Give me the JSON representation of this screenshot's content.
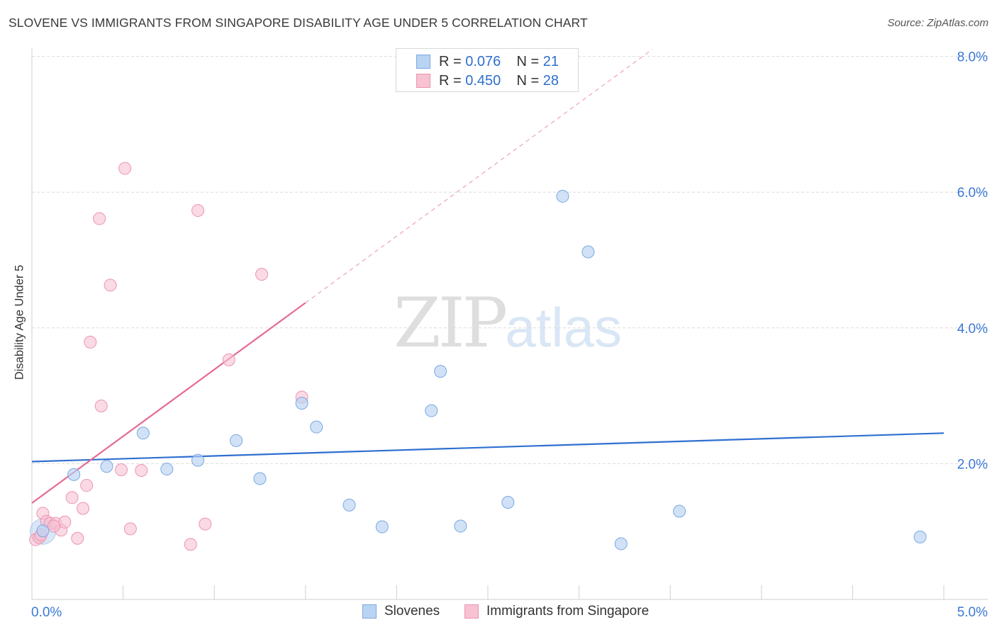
{
  "title": "SLOVENE VS IMMIGRANTS FROM SINGAPORE DISABILITY AGE UNDER 5 CORRELATION CHART",
  "source": "Source: ZipAtlas.com",
  "watermark": {
    "part1": "ZIP",
    "part2": "atlas"
  },
  "legend_top": [
    {
      "r_label": "R =",
      "r_value": "0.076",
      "n_label": "N =",
      "n_value": "21"
    },
    {
      "r_label": "R =",
      "r_value": "0.450",
      "n_label": "N =",
      "n_value": "28"
    }
  ],
  "legend_bottom": [
    "Slovenes",
    "Immigrants from Singapore"
  ],
  "colors": {
    "blue_fill": "#b9d3f2",
    "blue_stroke": "#7aa8e2",
    "blue_line": "#2f6fd0",
    "pink_fill": "#f7c2d2",
    "pink_stroke": "#ec94b2",
    "pink_line": "#e66a93",
    "axis_label": "#3b78d6",
    "grid": "#dcdcdc"
  },
  "chart_data": {
    "type": "scatter",
    "title": "SLOVENE VS IMMIGRANTS FROM SINGAPORE DISABILITY AGE UNDER 5 CORRELATION CHART",
    "xlabel": "",
    "ylabel": "Disability Age Under 5",
    "xlim": [
      0,
      5
    ],
    "ylim": [
      0,
      8
    ],
    "x_tick_labels": [
      {
        "value": 0,
        "label": "0.0%"
      },
      {
        "value": 5,
        "label": "5.0%"
      }
    ],
    "y_tick_labels": [
      {
        "value": 2,
        "label": "2.0%"
      },
      {
        "value": 4,
        "label": "4.0%"
      },
      {
        "value": 6,
        "label": "6.0%"
      },
      {
        "value": 8,
        "label": "8.0%"
      }
    ],
    "grid": true,
    "legend_position": "top-center",
    "series": [
      {
        "name": "Slovenes",
        "color": "#7aa8e2",
        "points": [
          [
            0.06,
            1.01
          ],
          [
            0.23,
            1.84
          ],
          [
            0.41,
            1.96
          ],
          [
            0.61,
            2.45
          ],
          [
            0.74,
            1.92
          ],
          [
            0.91,
            2.05
          ],
          [
            1.12,
            2.34
          ],
          [
            1.25,
            1.78
          ],
          [
            1.48,
            2.89
          ],
          [
            1.56,
            2.54
          ],
          [
            1.74,
            1.39
          ],
          [
            1.92,
            1.07
          ],
          [
            2.19,
            2.78
          ],
          [
            2.24,
            3.36
          ],
          [
            2.35,
            1.08
          ],
          [
            2.61,
            1.43
          ],
          [
            2.91,
            5.94
          ],
          [
            3.05,
            5.12
          ],
          [
            3.23,
            0.82
          ],
          [
            3.55,
            1.3
          ],
          [
            4.87,
            0.92
          ]
        ],
        "trend": {
          "x": [
            0,
            5
          ],
          "y": [
            2.03,
            2.45
          ]
        }
      },
      {
        "name": "Immigrants from Singapore",
        "color": "#ec94b2",
        "points": [
          [
            0.02,
            0.88
          ],
          [
            0.04,
            0.91
          ],
          [
            0.06,
            1.27
          ],
          [
            0.08,
            1.15
          ],
          [
            0.1,
            1.12
          ],
          [
            0.13,
            1.12
          ],
          [
            0.16,
            1.02
          ],
          [
            0.18,
            1.14
          ],
          [
            0.22,
            1.5
          ],
          [
            0.25,
            0.9
          ],
          [
            0.28,
            1.34
          ],
          [
            0.3,
            1.68
          ],
          [
            0.32,
            3.79
          ],
          [
            0.37,
            5.61
          ],
          [
            0.38,
            2.85
          ],
          [
            0.43,
            4.63
          ],
          [
            0.49,
            1.91
          ],
          [
            0.51,
            6.35
          ],
          [
            0.54,
            1.04
          ],
          [
            0.6,
            1.9
          ],
          [
            0.87,
            0.81
          ],
          [
            0.91,
            5.73
          ],
          [
            0.95,
            1.11
          ],
          [
            1.08,
            3.53
          ],
          [
            1.26,
            4.79
          ],
          [
            1.48,
            2.98
          ],
          [
            0.12,
            1.08
          ],
          [
            0.05,
            0.95
          ]
        ],
        "trend": {
          "x": [
            0,
            1.5
          ],
          "y": [
            1.42,
            4.37
          ]
        },
        "trend_extension": {
          "x": [
            1.5,
            3.4
          ],
          "y": [
            4.37,
            8.1
          ]
        }
      }
    ]
  }
}
